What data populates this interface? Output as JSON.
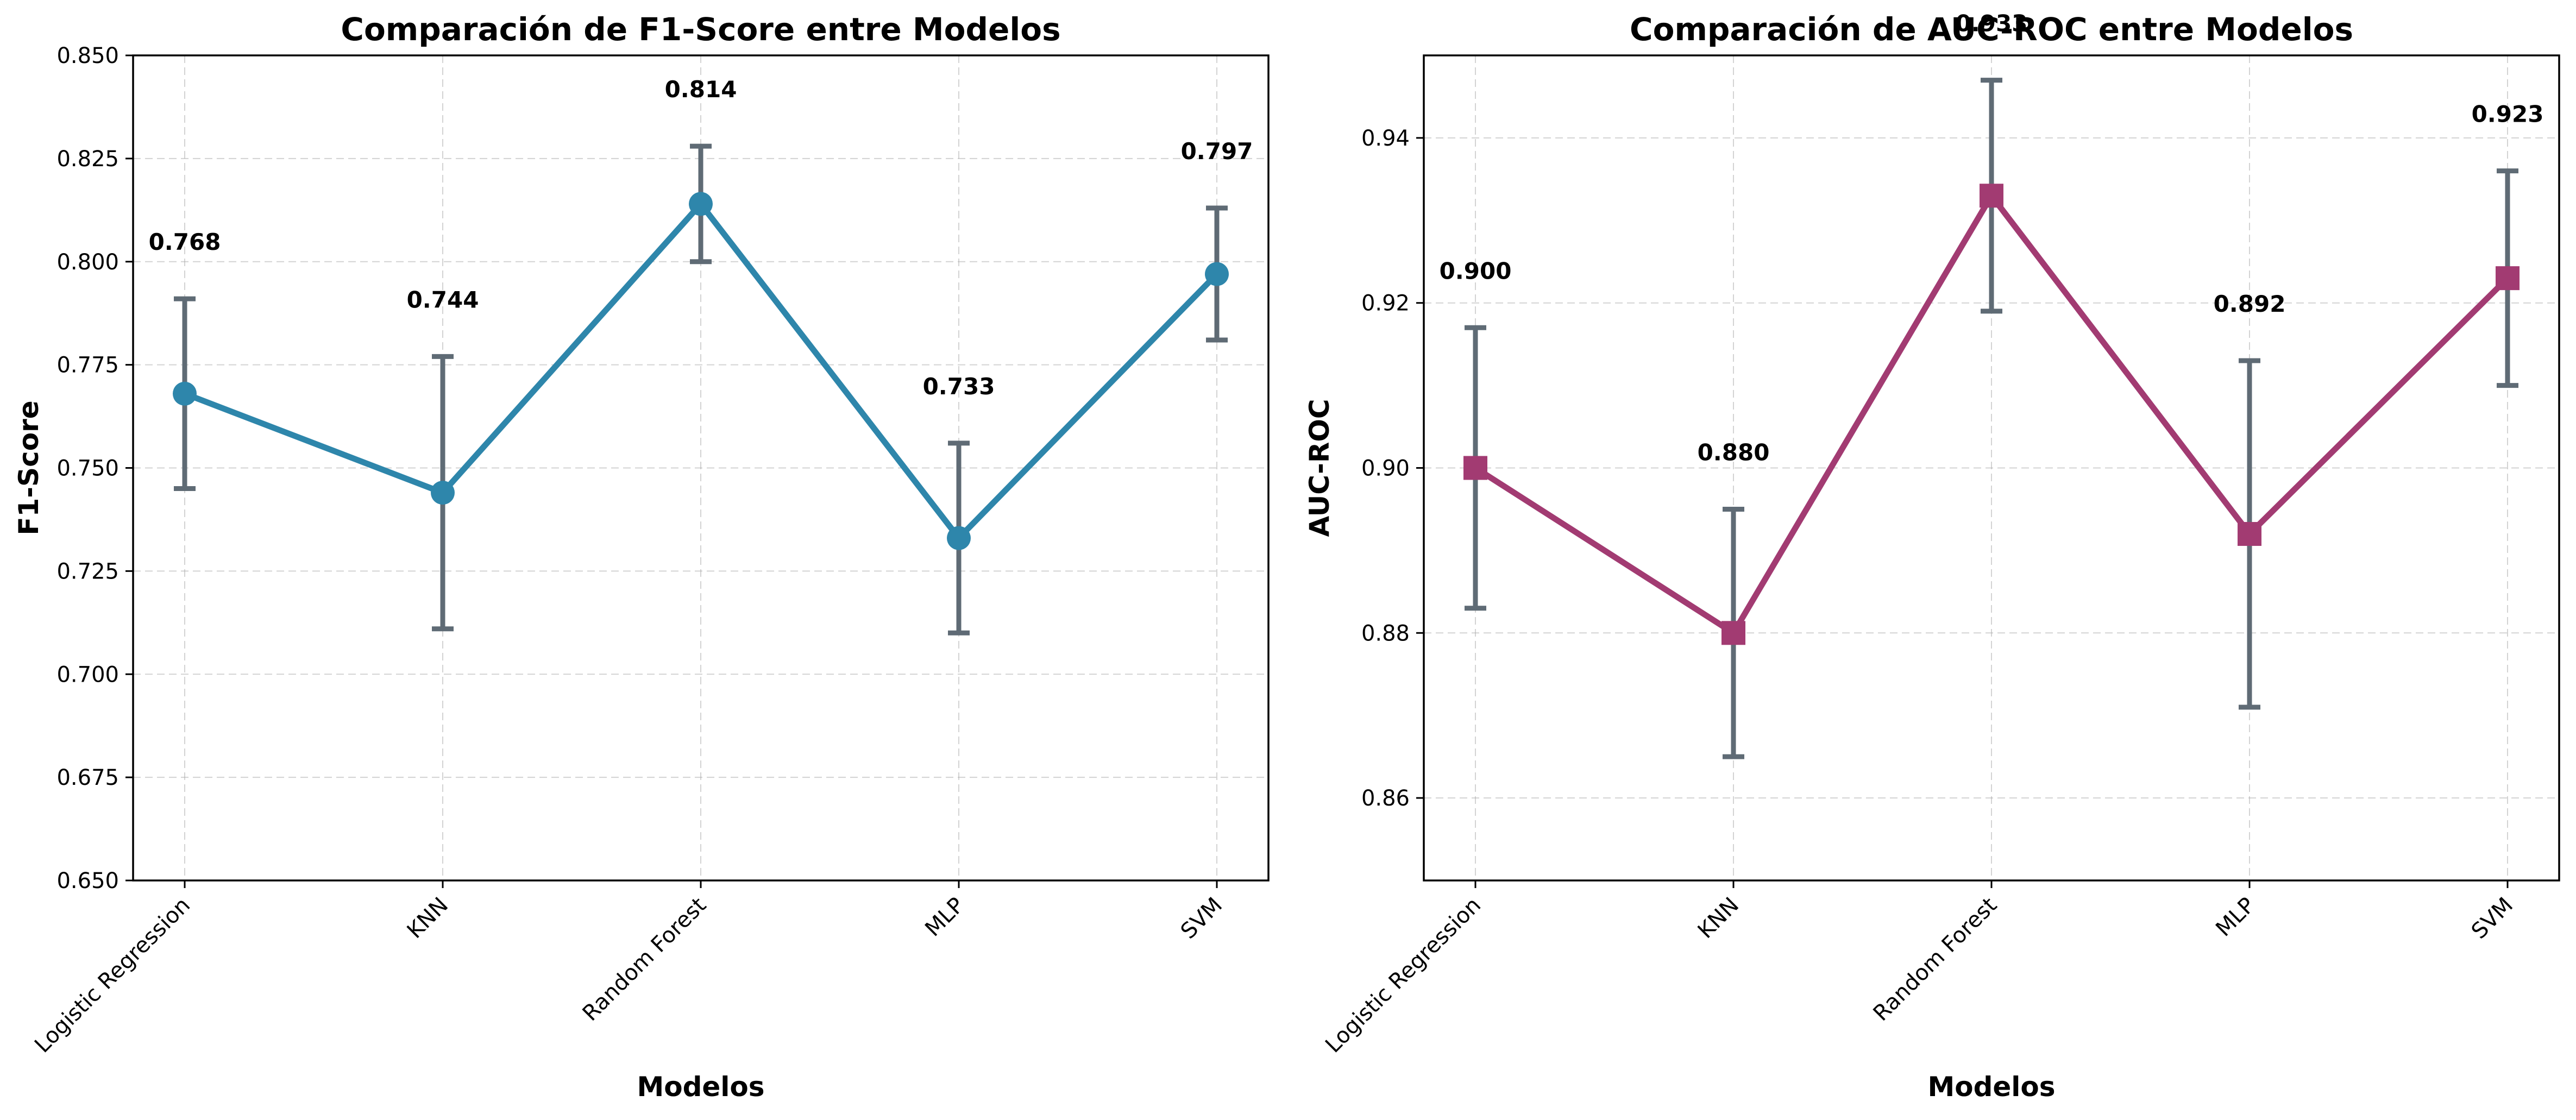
{
  "chart_data": [
    {
      "type": "line",
      "title": "Comparación de F1-Score entre Modelos",
      "xlabel": "Modelos",
      "ylabel": "F1-Score",
      "categories": [
        "Logistic Regression",
        "KNN",
        "Random Forest",
        "MLP",
        "SVM"
      ],
      "values": [
        0.768,
        0.744,
        0.814,
        0.733,
        0.797
      ],
      "error_low": [
        0.745,
        0.711,
        0.8,
        0.71,
        0.781
      ],
      "error_high": [
        0.791,
        0.777,
        0.828,
        0.756,
        0.813
      ],
      "data_labels": [
        "0.768",
        "0.744",
        "0.814",
        "0.733",
        "0.797"
      ],
      "ylim": [
        0.65,
        0.85
      ],
      "yticks": [
        0.65,
        0.675,
        0.7,
        0.725,
        0.75,
        0.775,
        0.8,
        0.825,
        0.85
      ],
      "ytick_labels": [
        "0.650",
        "0.675",
        "0.700",
        "0.725",
        "0.750",
        "0.775",
        "0.800",
        "0.825",
        "0.850"
      ],
      "marker": "circle",
      "color": "#2e86ab",
      "error_color": "#5f6b75",
      "grid": true
    },
    {
      "type": "line",
      "title": "Comparación de AUC-ROC entre Modelos",
      "xlabel": "Modelos",
      "ylabel": "AUC-ROC",
      "categories": [
        "Logistic Regression",
        "KNN",
        "Random Forest",
        "MLP",
        "SVM"
      ],
      "values": [
        0.9,
        0.88,
        0.933,
        0.892,
        0.923
      ],
      "error_low": [
        0.883,
        0.865,
        0.919,
        0.871,
        0.91
      ],
      "error_high": [
        0.917,
        0.895,
        0.947,
        0.913,
        0.936
      ],
      "data_labels": [
        "0.900",
        "0.880",
        "0.933",
        "0.892",
        "0.923"
      ],
      "ylim": [
        0.85,
        0.95
      ],
      "yticks": [
        0.86,
        0.88,
        0.9,
        0.92,
        0.94
      ],
      "ytick_labels": [
        "0.86",
        "0.88",
        "0.90",
        "0.92",
        "0.94"
      ],
      "marker": "square",
      "color": "#a23b72",
      "error_color": "#5f6b75",
      "grid": true
    }
  ]
}
